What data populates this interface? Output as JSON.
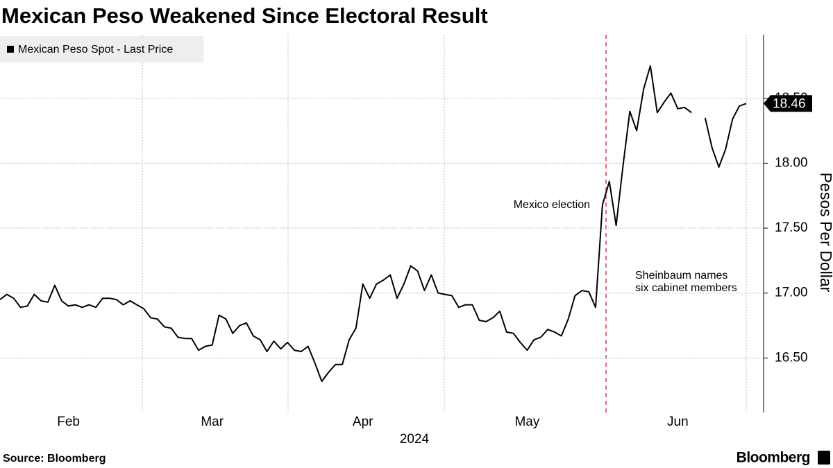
{
  "chart_data": {
    "type": "line",
    "title": "Mexican Peso Weakened Since Electoral Result",
    "y_label": "Pesos Per Dollar",
    "year_label": "2024",
    "source": "Source: Bloomberg",
    "brand": "Bloomberg",
    "annotations": [
      {
        "lines": [
          "Mexico election"
        ]
      },
      {
        "lines": [
          "Sheinbaum names",
          "six cabinet members"
        ]
      }
    ],
    "categories": [
      null,
      null,
      null,
      null,
      null,
      null,
      null,
      null,
      null,
      null,
      "Feb",
      null,
      null,
      null,
      null,
      null,
      null,
      null,
      null,
      null,
      null,
      null,
      null,
      null,
      null,
      null,
      null,
      null,
      null,
      null,
      null,
      "Mar",
      null,
      null,
      null,
      null,
      null,
      null,
      null,
      null,
      null,
      null,
      null,
      null,
      null,
      null,
      null,
      null,
      null,
      null,
      null,
      null,
      null,
      "Apr",
      null,
      null,
      null,
      null,
      null,
      null,
      null,
      null,
      null,
      null,
      null,
      null,
      null,
      null,
      null,
      null,
      null,
      null,
      null,
      null,
      null,
      null,
      null,
      "May",
      null,
      null,
      null,
      null,
      null,
      null,
      null,
      null,
      null,
      null,
      null,
      null,
      null,
      null,
      null,
      null,
      null,
      null,
      null,
      null,
      null,
      "Jun",
      null,
      null,
      null,
      null,
      null,
      null,
      null,
      null,
      null,
      null
    ],
    "series": [
      {
        "name": "Mexican Peso Spot - Last Price",
        "color": "#000000",
        "values": [
          16.95,
          16.99,
          16.96,
          16.89,
          16.9,
          16.99,
          16.94,
          16.93,
          17.06,
          16.94,
          16.9,
          16.91,
          16.89,
          16.91,
          16.89,
          16.96,
          16.96,
          16.95,
          16.91,
          16.94,
          16.91,
          16.88,
          16.81,
          16.8,
          16.74,
          16.73,
          16.66,
          16.65,
          16.65,
          16.56,
          16.59,
          16.6,
          16.83,
          16.8,
          16.69,
          16.75,
          16.77,
          16.67,
          16.64,
          16.55,
          16.63,
          16.57,
          16.62,
          16.56,
          16.55,
          16.59,
          16.46,
          16.32,
          16.39,
          16.45,
          16.45,
          16.64,
          16.73,
          17.07,
          16.96,
          17.07,
          17.1,
          17.14,
          16.96,
          17.07,
          17.21,
          17.17,
          17.02,
          17.14,
          17.0,
          16.99,
          16.98,
          16.89,
          16.91,
          16.91,
          16.79,
          16.78,
          16.81,
          16.86,
          16.7,
          16.69,
          16.62,
          16.56,
          16.64,
          16.66,
          16.72,
          16.7,
          16.67,
          16.8,
          16.98,
          17.02,
          17.01,
          16.89,
          17.68,
          17.86,
          17.52,
          17.98,
          18.4,
          18.25,
          18.57,
          18.75,
          18.39,
          18.47,
          18.54,
          18.42,
          18.43,
          18.39,
          null,
          18.35,
          18.12,
          17.97,
          18.11,
          18.34,
          18.44,
          18.46
        ]
      }
    ],
    "ylim": [
      16.08,
      18.99
    ],
    "yticks": [
      {
        "value": 16.5,
        "label": "16.50"
      },
      {
        "value": 17,
        "label": "17.00"
      },
      {
        "value": 17.5,
        "label": "17.50"
      },
      {
        "value": 18,
        "label": "18.00"
      },
      {
        "value": 18.5,
        "label": "18.50"
      }
    ],
    "grid": true,
    "legend": "upper left"
  }
}
